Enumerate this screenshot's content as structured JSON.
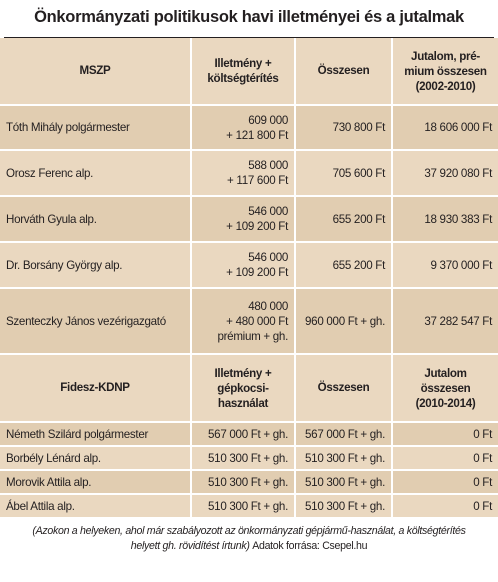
{
  "title": "Önkormányzati politikusok havi illetményei és a jutalmak",
  "mszp": {
    "header": {
      "party": "MSZP",
      "col2": [
        "Illetmény +",
        "költségtérítés"
      ],
      "col3": "Összesen",
      "col4": [
        "Jutalom, pré-",
        "mium összesen",
        "(2002-2010)"
      ]
    },
    "rows": [
      {
        "name": "Tóth Mihály polgármester",
        "pay": [
          "609 000",
          "+ 121 800 Ft"
        ],
        "total": "730 800 Ft",
        "bonus": "18 606 000 Ft"
      },
      {
        "name": "Orosz Ferenc alp.",
        "pay": [
          "588 000",
          "+ 117 600 Ft"
        ],
        "total": "705 600 Ft",
        "bonus": "37 920 080 Ft"
      },
      {
        "name": "Horváth Gyula alp.",
        "pay": [
          "546 000",
          "+ 109 200 Ft"
        ],
        "total": "655 200 Ft",
        "bonus": "18 930 383 Ft"
      },
      {
        "name": "Dr. Borsány György alp.",
        "pay": [
          "546 000",
          "+ 109 200 Ft"
        ],
        "total": "655 200 Ft",
        "bonus": "9 370 000 Ft"
      },
      {
        "name": "Szenteczky János vezérigazgató",
        "pay": [
          "480 000",
          "+ 480 000 Ft",
          "prémium + gh."
        ],
        "total": "960 000 Ft + gh.",
        "bonus": "37 282 547 Ft"
      }
    ]
  },
  "fidesz": {
    "header": {
      "party": "Fidesz-KDNP",
      "col2": [
        "Illetmény +",
        "gépkocsi-",
        "használat"
      ],
      "col3": "Összesen",
      "col4": [
        "Jutalom",
        "összesen",
        "(2010-2014)"
      ]
    },
    "rows": [
      {
        "name": "Németh Szilárd polgármester",
        "pay": "567 000 Ft + gh.",
        "total": "567 000 Ft + gh.",
        "bonus": "0 Ft"
      },
      {
        "name": "Borbély Lénárd alp.",
        "pay": "510 300 Ft + gh.",
        "total": "510 300 Ft + gh.",
        "bonus": "0 Ft"
      },
      {
        "name": "Morovik Attila alp.",
        "pay": "510 300 Ft + gh.",
        "total": "510 300 Ft + gh.",
        "bonus": "0 Ft"
      },
      {
        "name": "Ábel Attila alp.",
        "pay": "510 300 Ft + gh.",
        "total": "510 300 Ft + gh.",
        "bonus": "0 Ft"
      }
    ]
  },
  "footer": {
    "note_line1": "(Azokon a helyeken, ahol már szabályozott az önkormányzati gépjármű-használat, a költségtérítés",
    "note_line2": "helyett  gh. rövidítést írtunk)",
    "source": "Adatok forrása: Csepel.hu"
  }
}
